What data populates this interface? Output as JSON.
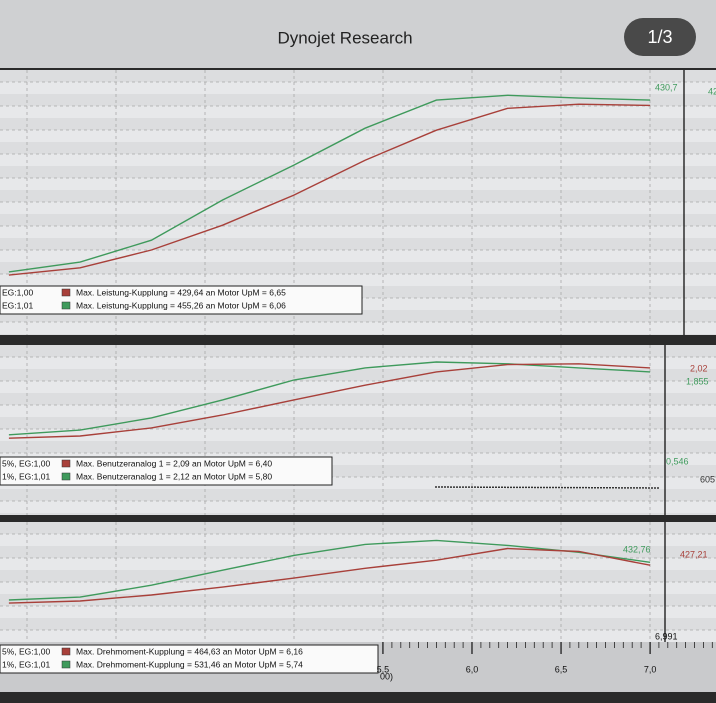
{
  "title": "Dynojet Research",
  "badge": "1/3",
  "x": [
    3.4,
    3.8,
    4.2,
    4.6,
    5.0,
    5.4,
    5.8,
    6.2,
    6.6,
    7.0
  ],
  "xticks": [
    {
      "value": 5.5,
      "label": "5,5"
    },
    {
      "value": 6.0,
      "label": "6,0"
    },
    {
      "value": 6.5,
      "label": "6,5"
    },
    {
      "value": 7.0,
      "label": "7,0"
    }
  ],
  "xlim": [
    3.35,
    7.37
  ],
  "cursor_label": "6,991",
  "axis_fragment": "00)",
  "panels": [
    {
      "ylim": [
        0,
        500
      ],
      "legend": [
        {
          "prefix": "EG:1,00",
          "color": "#a8403a",
          "text": "Max. Leistung-Kupplung = 429,64 an Motor UpM = 6,65"
        },
        {
          "prefix": "EG:1,01",
          "color": "#3f9a5c",
          "text": "Max. Leistung-Kupplung = 455,26 an Motor UpM = 6,06"
        }
      ],
      "series": [
        {
          "color": "#3f9a5c",
          "values": [
            20,
            44,
            98,
            197,
            283,
            374,
            443,
            455,
            448,
            443
          ]
        },
        {
          "color": "#a8403a",
          "values": [
            12,
            30,
            74,
            135,
            209,
            295,
            369,
            423,
            433,
            430
          ]
        }
      ],
      "annotations": [
        {
          "text": "430,7",
          "color": "#3f9a5c"
        },
        {
          "text": "42",
          "color": "#3f9a5c"
        }
      ]
    },
    {
      "ylim": [
        0,
        2.5
      ],
      "legend": [
        {
          "prefix": "5%, EG:1,00",
          "color": "#a8403a",
          "text": "Max. Benutzeranalog 1 = 2,09 an Motor UpM = 6,40"
        },
        {
          "prefix": "1%, EG:1,01",
          "color": "#3f9a5c",
          "text": "Max. Benutzeranalog 1 = 2,12 an Motor UpM = 5,80"
        }
      ],
      "series": [
        {
          "color": "#3f9a5c",
          "values": [
            0.14,
            0.27,
            0.6,
            1.09,
            1.63,
            1.96,
            2.12,
            2.07,
            1.96,
            1.85
          ]
        },
        {
          "color": "#a8403a",
          "values": [
            0.05,
            0.11,
            0.33,
            0.68,
            1.09,
            1.49,
            1.85,
            2.05,
            2.07,
            1.96
          ]
        }
      ],
      "annotations": [
        {
          "text": "2,02",
          "color": "#a8403a"
        },
        {
          "text": "1,855",
          "color": "#3f9a5c"
        },
        {
          "text": "0,546",
          "color": "#3f9a5c"
        },
        {
          "text": "605",
          "color": "#333333"
        }
      ]
    },
    {
      "ylim": [
        0,
        600
      ],
      "legend": [
        {
          "prefix": "5%, EG:1,00",
          "color": "#a8403a",
          "text": "Max. Drehmoment-Kupplung = 464,63 an Motor UpM = 6,16"
        },
        {
          "prefix": "1%, EG:1,01",
          "color": "#3f9a5c",
          "text": "Max. Drehmoment-Kupplung = 531,46 an Motor UpM = 5,74"
        }
      ],
      "series": [
        {
          "color": "#3f9a5c",
          "values": [
            41,
            65,
            163,
            286,
            408,
            498,
            531,
            490,
            433,
            351
          ]
        },
        {
          "color": "#a8403a",
          "values": [
            16,
            33,
            82,
            147,
            221,
            302,
            368,
            464,
            440,
            327
          ]
        }
      ],
      "annotations": [
        {
          "text": "432,76",
          "color": "#3f9a5c"
        },
        {
          "text": "427,21",
          "color": "#a8403a"
        }
      ]
    }
  ]
}
